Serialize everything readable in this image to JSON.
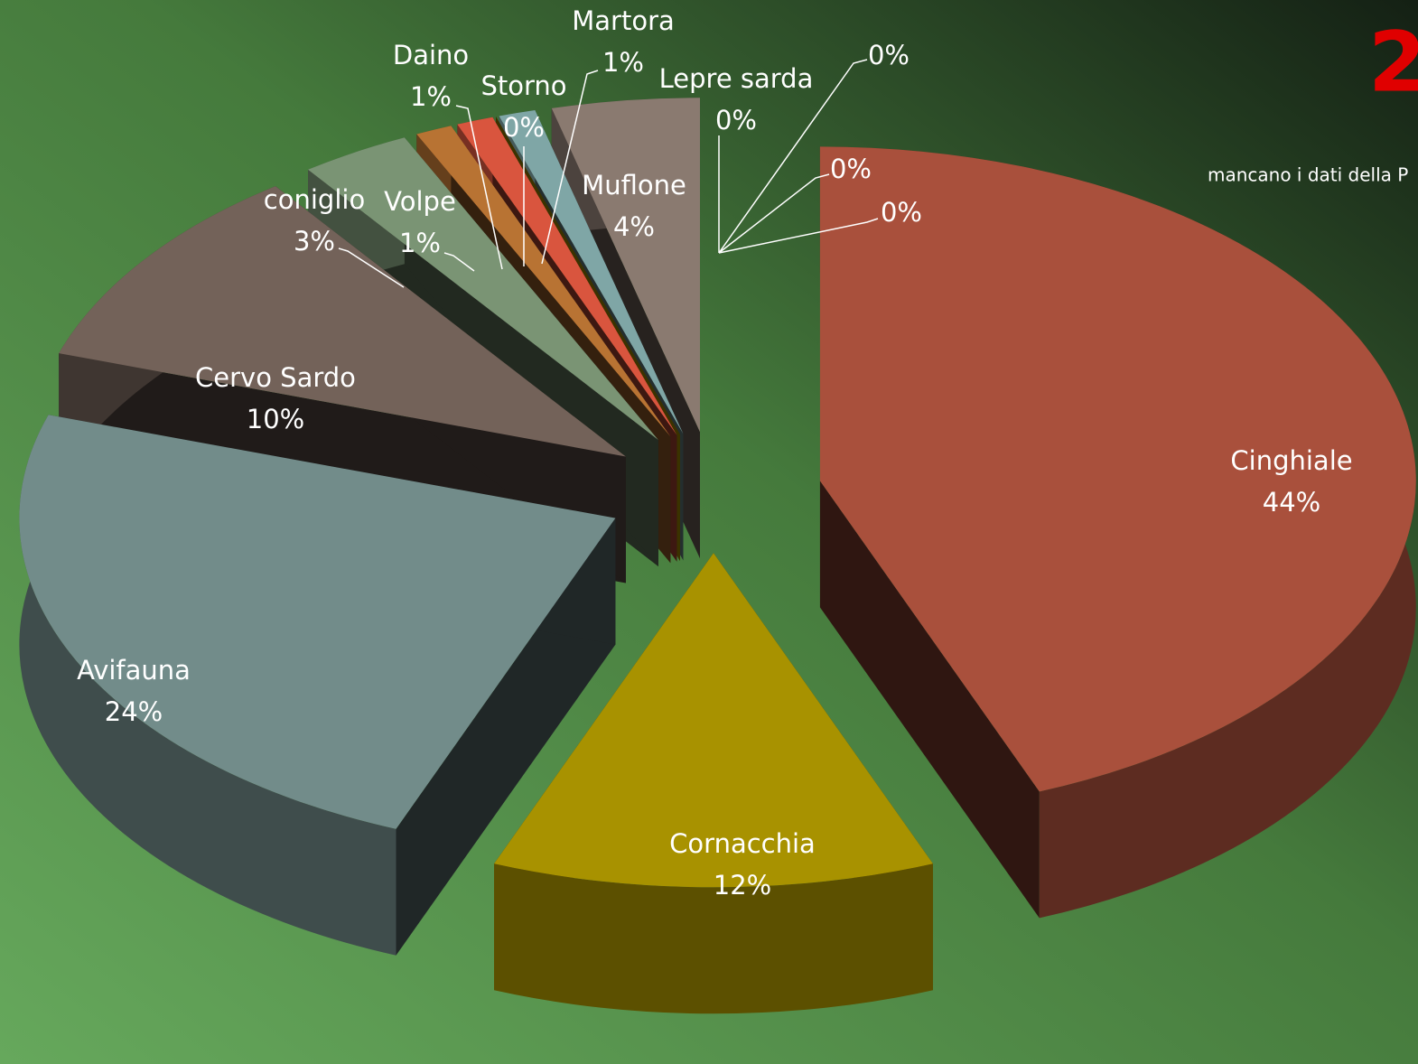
{
  "chart_data": {
    "type": "pie3d",
    "title": "2",
    "subtitle": "mancano i dati della P",
    "categories": [
      "Cinghiale",
      "Cornacchia",
      "Avifauna",
      "Cervo Sardo",
      "coniglio",
      "Volpe",
      "Daino",
      "Storno",
      "Martora",
      "Muflone",
      "Lepre sarda",
      null,
      null,
      null
    ],
    "values": [
      44,
      12,
      24,
      10,
      3,
      1,
      1,
      0,
      1,
      4,
      0,
      0,
      0,
      0
    ],
    "value_labels": [
      "44%",
      "12%",
      "24%",
      "10%",
      "3%",
      "1%",
      "1%",
      "0%",
      "1%",
      "4%",
      "0%",
      "0%",
      "0%",
      "0%"
    ],
    "colors": [
      "#a9503c",
      "#a89200",
      "#728c8a",
      "#736259",
      "#7a9474",
      "#b87333",
      "#d9553e",
      "#d4b200",
      "#7fa6a6",
      "#8a7a70",
      "#9a8f6a",
      "#7d9ab0",
      "#a0a070",
      "#9a7a9a"
    ]
  }
}
